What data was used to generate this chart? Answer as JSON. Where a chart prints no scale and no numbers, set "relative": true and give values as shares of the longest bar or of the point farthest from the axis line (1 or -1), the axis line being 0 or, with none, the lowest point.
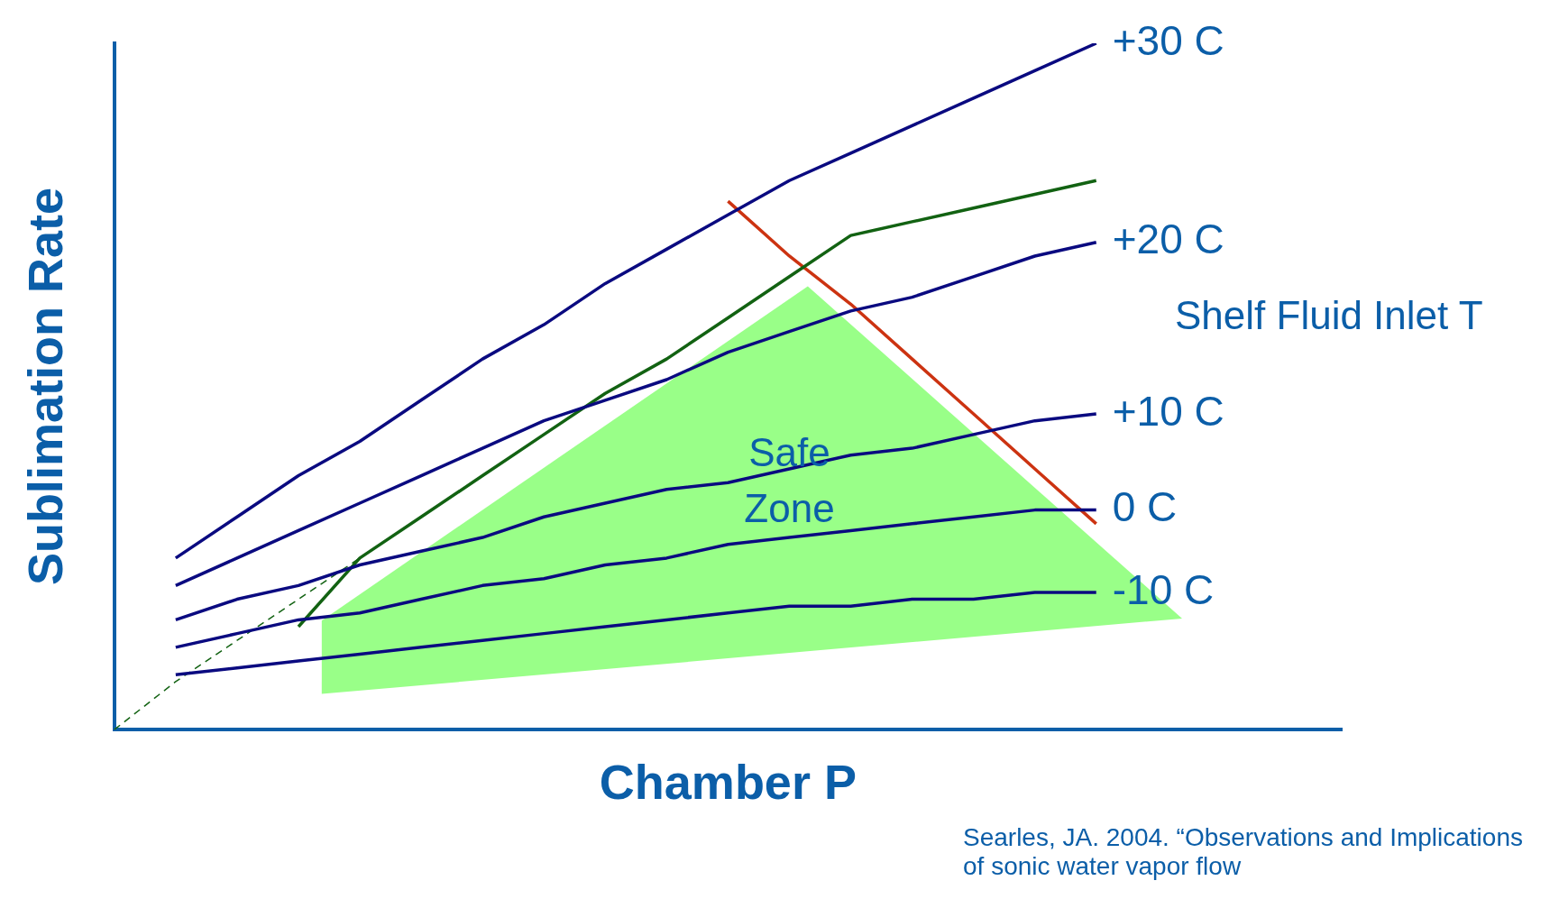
{
  "chart_data": {
    "type": "line",
    "relative": true,
    "xlabel": "Chamber P",
    "ylabel": "Sublimation Rate",
    "legend_title": "Shelf Fluid Inlet T",
    "categories": [
      null,
      null,
      null,
      null,
      null,
      null,
      null,
      null,
      null,
      null,
      null,
      null,
      null,
      null,
      null,
      null,
      null,
      null,
      null,
      null,
      null
    ],
    "series": [
      {
        "name": "+30 C",
        "color": "#0a0a80",
        "values": [
          null,
          0.25,
          0.31,
          0.37,
          0.42,
          0.48,
          0.54,
          0.59,
          0.65,
          0.7,
          0.75,
          0.8,
          0.84,
          0.88,
          0.92,
          0.96,
          1.0,
          null,
          null,
          null,
          null
        ]
      },
      {
        "name": "+20 C",
        "color": "#0a0a80",
        "values": [
          null,
          0.21,
          0.25,
          0.29,
          0.33,
          0.37,
          0.41,
          0.45,
          0.48,
          0.51,
          0.55,
          0.58,
          0.61,
          0.63,
          0.66,
          0.69,
          0.71,
          null,
          null,
          null,
          null
        ]
      },
      {
        "name": "+10 C",
        "color": "#0a0a80",
        "values": [
          null,
          0.16,
          0.19,
          0.21,
          0.24,
          0.26,
          0.28,
          0.31,
          0.33,
          0.35,
          0.36,
          0.38,
          0.4,
          0.41,
          0.43,
          0.45,
          0.46,
          null,
          null,
          null,
          null
        ]
      },
      {
        "name": "0 C",
        "color": "#0a0a80",
        "values": [
          null,
          0.12,
          0.14,
          0.16,
          0.17,
          0.19,
          0.21,
          0.22,
          0.24,
          0.25,
          0.27,
          0.28,
          0.29,
          0.3,
          0.31,
          0.32,
          0.32,
          null,
          null,
          null,
          null
        ]
      },
      {
        "name": "-10 C",
        "color": "#0a0a80",
        "values": [
          null,
          0.08,
          0.09,
          0.1,
          0.11,
          0.12,
          0.13,
          0.14,
          0.15,
          0.16,
          0.17,
          0.18,
          0.18,
          0.19,
          0.19,
          0.2,
          0.2,
          null,
          null,
          null,
          null
        ]
      },
      {
        "color": "#126212",
        "values": [
          null,
          null,
          null,
          0.15,
          0.25,
          0.31,
          0.37,
          0.43,
          0.49,
          0.54,
          0.6,
          0.66,
          0.72,
          0.74,
          0.76,
          0.78,
          0.8,
          null,
          null,
          null,
          null
        ]
      },
      {
        "color": "#cc3311",
        "values": [
          null,
          null,
          null,
          null,
          null,
          null,
          null,
          null,
          null,
          null,
          0.77,
          0.69,
          0.62,
          0.54,
          0.46,
          0.38,
          0.3,
          null,
          null,
          null,
          null
        ]
      },
      {
        "color": "#126212",
        "line_style": "dashed",
        "values": [
          0.0,
          0.07,
          0.13,
          0.19,
          0.25,
          null,
          null,
          null,
          null,
          null,
          null,
          null,
          null,
          null,
          null,
          null,
          null,
          null,
          null,
          null,
          null
        ]
      }
    ],
    "annotations": [
      "Safe Zone",
      "Searles, JA. 2004. “Observations and Implications of sonic water vapor flow"
    ]
  }
}
